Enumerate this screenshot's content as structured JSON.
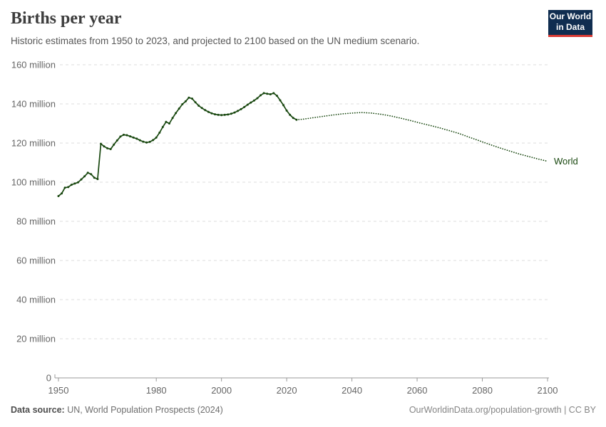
{
  "header": {
    "title": "Births per year",
    "subtitle": "Historic estimates from 1950 to 2023, and projected to 2100 based on the UN medium scenario.",
    "logo": {
      "line1": "Our World",
      "line2": "in Data"
    }
  },
  "footer": {
    "source_label": "Data source:",
    "source_text": " UN, World Population Prospects (2024)",
    "link_text": "OurWorldinData.org/population-growth | CC BY"
  },
  "colors": {
    "line": "#18470f",
    "grid": "#dcdcdc",
    "axis": "#999999",
    "tick_label": "#666666",
    "logo_bg": "#102d50",
    "logo_accent": "#d73a34"
  },
  "chart_data": {
    "type": "line",
    "title": "Births per year",
    "xlabel": "",
    "ylabel": "",
    "xlim": [
      1950,
      2100
    ],
    "ylim": [
      0,
      160
    ],
    "x_ticks": [
      1950,
      1980,
      2000,
      2020,
      2040,
      2060,
      2080,
      2100
    ],
    "y_ticks": [
      0,
      20,
      40,
      60,
      80,
      100,
      120,
      140,
      160
    ],
    "y_tick_suffix": " million",
    "grid": "horizontal-dashed",
    "legend_position": "end-of-line",
    "end_label": "World",
    "series": [
      {
        "name": "World (historic estimates 1950-2023)",
        "style": "solid-with-markers",
        "color": "#18470f",
        "points": [
          [
            1950,
            92.9
          ],
          [
            1951,
            94.3
          ],
          [
            1952,
            97.2
          ],
          [
            1953,
            97.5
          ],
          [
            1954,
            98.7
          ],
          [
            1955,
            99.3
          ],
          [
            1956,
            99.9
          ],
          [
            1957,
            101.4
          ],
          [
            1958,
            103.0
          ],
          [
            1959,
            104.8
          ],
          [
            1960,
            104.1
          ],
          [
            1961,
            102.3
          ],
          [
            1962,
            101.6
          ],
          [
            1963,
            119.6
          ],
          [
            1964,
            118.3
          ],
          [
            1965,
            117.3
          ],
          [
            1966,
            116.9
          ],
          [
            1967,
            119.2
          ],
          [
            1968,
            121.3
          ],
          [
            1969,
            123.3
          ],
          [
            1970,
            124.2
          ],
          [
            1971,
            124.0
          ],
          [
            1972,
            123.4
          ],
          [
            1973,
            122.8
          ],
          [
            1974,
            122.2
          ],
          [
            1975,
            121.4
          ],
          [
            1976,
            120.7
          ],
          [
            1977,
            120.3
          ],
          [
            1978,
            120.6
          ],
          [
            1979,
            121.5
          ],
          [
            1980,
            122.8
          ],
          [
            1981,
            125.3
          ],
          [
            1982,
            128.2
          ],
          [
            1983,
            130.8
          ],
          [
            1984,
            130.0
          ],
          [
            1985,
            132.8
          ],
          [
            1986,
            135.3
          ],
          [
            1987,
            137.6
          ],
          [
            1988,
            139.8
          ],
          [
            1989,
            141.3
          ],
          [
            1990,
            143.2
          ],
          [
            1991,
            142.7
          ],
          [
            1992,
            140.8
          ],
          [
            1993,
            139.1
          ],
          [
            1994,
            137.9
          ],
          [
            1995,
            136.8
          ],
          [
            1996,
            135.9
          ],
          [
            1997,
            135.2
          ],
          [
            1998,
            134.7
          ],
          [
            1999,
            134.4
          ],
          [
            2000,
            134.3
          ],
          [
            2001,
            134.4
          ],
          [
            2002,
            134.6
          ],
          [
            2003,
            135.0
          ],
          [
            2004,
            135.6
          ],
          [
            2005,
            136.4
          ],
          [
            2006,
            137.3
          ],
          [
            2007,
            138.4
          ],
          [
            2008,
            139.6
          ],
          [
            2009,
            140.7
          ],
          [
            2010,
            141.7
          ],
          [
            2011,
            142.9
          ],
          [
            2012,
            144.4
          ],
          [
            2013,
            145.5
          ],
          [
            2014,
            145.2
          ],
          [
            2015,
            144.9
          ],
          [
            2016,
            145.5
          ],
          [
            2017,
            144.2
          ],
          [
            2018,
            141.8
          ],
          [
            2019,
            139.3
          ],
          [
            2020,
            136.6
          ],
          [
            2021,
            134.4
          ],
          [
            2022,
            132.8
          ],
          [
            2023,
            131.9
          ]
        ]
      },
      {
        "name": "World (UN medium scenario projection 2023-2100)",
        "style": "dotted",
        "color": "#18470f",
        "points": [
          [
            2023,
            131.9
          ],
          [
            2025,
            132.2
          ],
          [
            2028,
            132.9
          ],
          [
            2031,
            133.6
          ],
          [
            2034,
            134.3
          ],
          [
            2037,
            134.9
          ],
          [
            2040,
            135.3
          ],
          [
            2043,
            135.6
          ],
          [
            2046,
            135.3
          ],
          [
            2049,
            134.7
          ],
          [
            2052,
            133.8
          ],
          [
            2055,
            132.7
          ],
          [
            2058,
            131.5
          ],
          [
            2061,
            130.2
          ],
          [
            2064,
            129.0
          ],
          [
            2067,
            127.7
          ],
          [
            2070,
            126.3
          ],
          [
            2073,
            124.8
          ],
          [
            2076,
            123.0
          ],
          [
            2079,
            121.2
          ],
          [
            2082,
            119.4
          ],
          [
            2085,
            117.7
          ],
          [
            2088,
            116.1
          ],
          [
            2091,
            114.6
          ],
          [
            2094,
            113.2
          ],
          [
            2097,
            111.9
          ],
          [
            2100,
            110.7
          ]
        ]
      }
    ]
  }
}
